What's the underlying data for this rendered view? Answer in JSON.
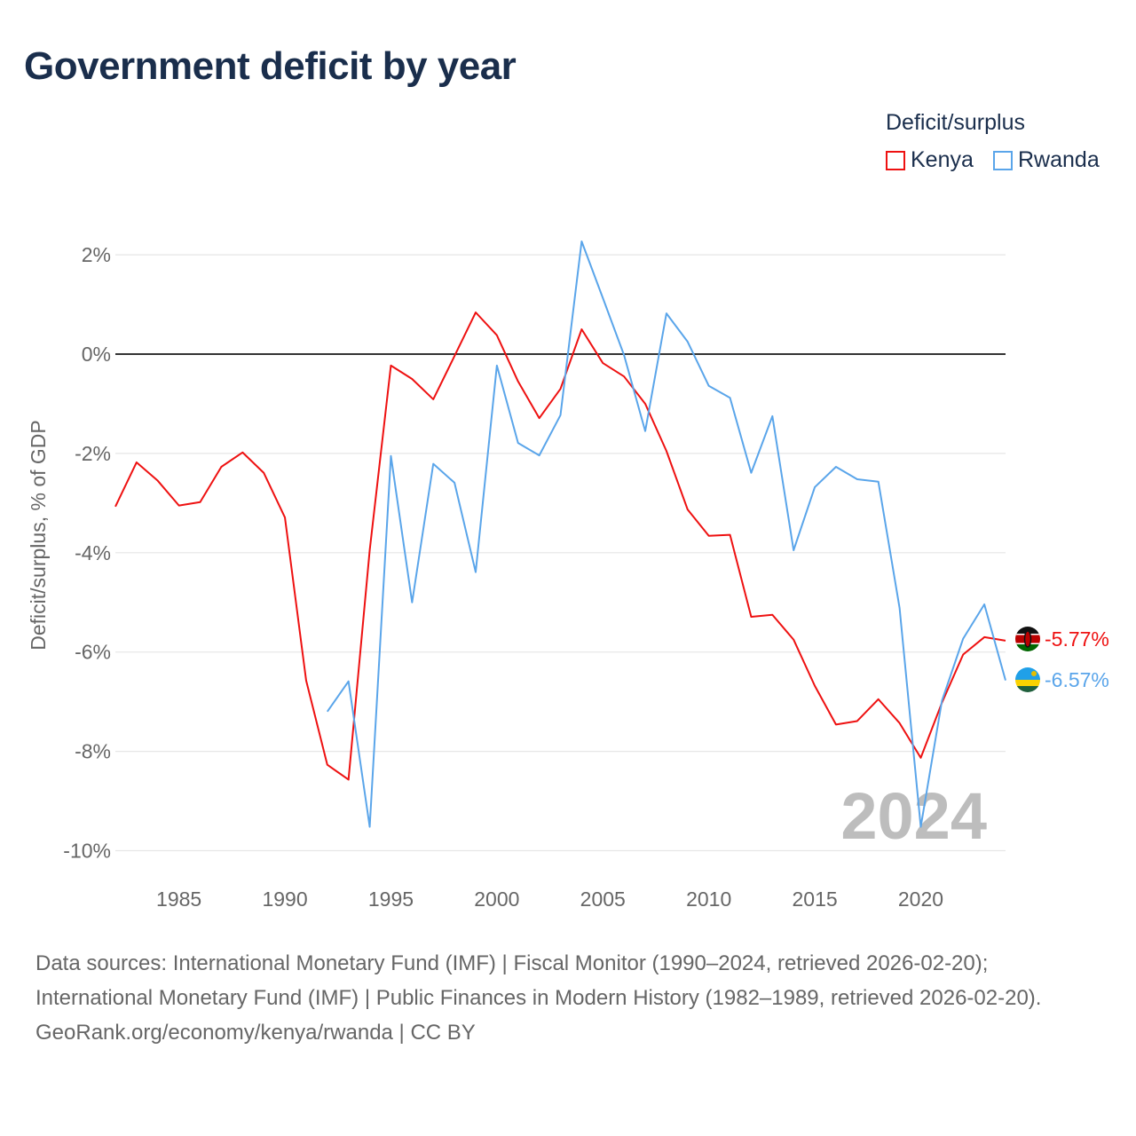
{
  "chart_data": {
    "type": "line",
    "title": "Government deficit by year",
    "ylabel": "Deficit/surplus, % of GDP",
    "xlabel": "",
    "ylim": [
      -10,
      2.5
    ],
    "xlim": [
      1982,
      2024
    ],
    "yticks": [
      2,
      0,
      -2,
      -4,
      -6,
      -8,
      -10
    ],
    "ytick_labels": [
      "2%",
      "0%",
      "-2%",
      "-4%",
      "-6%",
      "-8%",
      "-10%"
    ],
    "xticks": [
      1985,
      1990,
      1995,
      2000,
      2005,
      2010,
      2015,
      2020
    ],
    "xtick_labels": [
      "1985",
      "1990",
      "1995",
      "2000",
      "2005",
      "2010",
      "2015",
      "2020"
    ],
    "grid": true,
    "legend_title": "Deficit/surplus",
    "legend_position": "top-right",
    "current_year_label": "2024",
    "series": [
      {
        "name": "Kenya",
        "color": "#ee1111",
        "end_label": "-5.77%",
        "x": [
          1982,
          1983,
          1984,
          1985,
          1986,
          1987,
          1988,
          1989,
          1990,
          1991,
          1992,
          1993,
          1994,
          1995,
          1996,
          1997,
          1998,
          1999,
          2000,
          2001,
          2002,
          2003,
          2004,
          2005,
          2006,
          2007,
          2008,
          2009,
          2010,
          2011,
          2012,
          2013,
          2014,
          2015,
          2016,
          2017,
          2018,
          2019,
          2020,
          2021,
          2022,
          2023,
          2024
        ],
        "values": [
          -3.07,
          -2.18,
          -2.55,
          -3.05,
          -2.98,
          -2.27,
          -1.98,
          -2.39,
          -3.29,
          -6.57,
          -8.27,
          -8.57,
          -3.95,
          -0.23,
          -0.5,
          -0.91,
          -0.04,
          0.84,
          0.38,
          -0.55,
          -1.29,
          -0.7,
          0.5,
          -0.18,
          -0.45,
          -1.0,
          -1.95,
          -3.13,
          -3.66,
          -3.64,
          -5.29,
          -5.25,
          -5.75,
          -6.68,
          -7.46,
          -7.39,
          -6.95,
          -7.43,
          -8.13,
          -7.02,
          -6.05,
          -5.7,
          -5.77
        ]
      },
      {
        "name": "Rwanda",
        "color": "#5aa5ea",
        "end_label": "-6.57%",
        "x": [
          1992,
          1993,
          1994,
          1995,
          1996,
          1997,
          1998,
          1999,
          2000,
          2001,
          2002,
          2003,
          2004,
          2005,
          2006,
          2007,
          2008,
          2009,
          2010,
          2011,
          2012,
          2013,
          2014,
          2015,
          2016,
          2017,
          2018,
          2019,
          2020,
          2021,
          2022,
          2023,
          2024
        ],
        "values": [
          -7.2,
          -6.59,
          -9.52,
          -2.05,
          -5.0,
          -2.21,
          -2.59,
          -4.39,
          -0.23,
          -1.79,
          -2.04,
          -1.23,
          2.27,
          1.13,
          -0.02,
          -1.55,
          0.82,
          0.25,
          -0.64,
          -0.88,
          -2.39,
          -1.25,
          -3.95,
          -2.68,
          -2.27,
          -2.52,
          -2.57,
          -5.11,
          -9.52,
          -6.98,
          -5.73,
          -5.04,
          -6.57
        ]
      }
    ]
  },
  "footer": {
    "sources": "Data sources: International Monetary Fund (IMF) | Fiscal Monitor (1990–2024, retrieved 2026-02-20); International Monetary Fund (IMF) | Public Finances in Modern History (1982–1989, retrieved 2026-02-20).",
    "credit": "GeoRank.org/economy/kenya/rwanda | CC BY"
  }
}
